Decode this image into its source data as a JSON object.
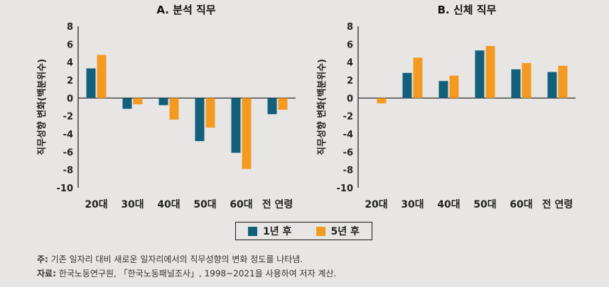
{
  "colors": {
    "series1": "#12607a",
    "series2": "#f49a21",
    "axis": "#1a1a1a",
    "background": "#e7e6e4"
  },
  "legend": {
    "items": [
      "1년 후",
      "5년 후"
    ]
  },
  "notes": {
    "note_label": "주:",
    "note_text": " 기존 일자리 대비 새로운 일자리에서의 직무성향의 변화 정도를 나타냄.",
    "source_label": "자료:",
    "source_text": " 한국노동연구원, 「한국노동패널조사」, 1998~2021을 사용하여 저자 계산."
  },
  "chart_data": [
    {
      "type": "bar",
      "title": "A. 분석 직무",
      "ylabel": "직무성향 변화(백분위수)",
      "xlabel": "",
      "ylim": [
        -10,
        8
      ],
      "yticks": [
        8,
        6,
        4,
        2,
        0,
        -2,
        -4,
        -6,
        -8,
        -10
      ],
      "categories": [
        "20대",
        "30대",
        "40대",
        "50대",
        "60대",
        "전 연령"
      ],
      "series": [
        {
          "name": "1년 후",
          "values": [
            3.3,
            -1.2,
            -0.8,
            -4.8,
            -6.1,
            -1.8
          ]
        },
        {
          "name": "5년 후",
          "values": [
            4.8,
            -0.7,
            -2.4,
            -3.3,
            -7.9,
            -1.3
          ]
        }
      ]
    },
    {
      "type": "bar",
      "title": "B. 신체 직무",
      "ylabel": "직무성향 변화(백분위수)",
      "xlabel": "",
      "ylim": [
        -10,
        8
      ],
      "yticks": [
        8,
        6,
        4,
        2,
        0,
        -2,
        -4,
        -6,
        -8,
        -10
      ],
      "categories": [
        "20대",
        "30대",
        "40대",
        "50대",
        "60대",
        "전 연령"
      ],
      "series": [
        {
          "name": "1년 후",
          "values": [
            0,
            2.8,
            1.9,
            5.3,
            3.2,
            2.9
          ]
        },
        {
          "name": "5년 후",
          "values": [
            -0.6,
            4.5,
            2.5,
            5.8,
            3.9,
            3.6
          ]
        }
      ]
    }
  ]
}
